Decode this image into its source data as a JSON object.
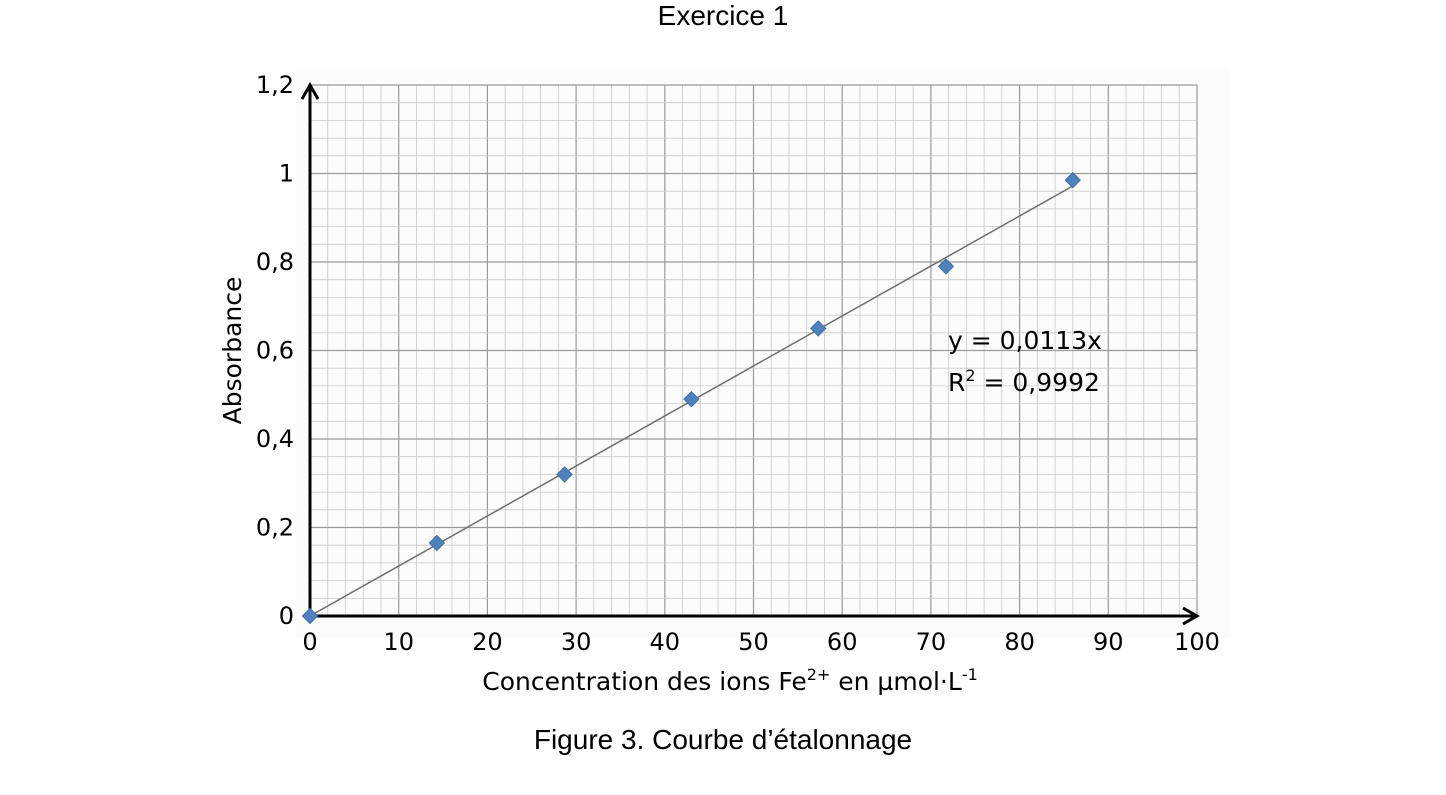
{
  "header": {
    "title": "Exercice 1"
  },
  "caption": "Figure 3. Courbe d’étalonnage",
  "chart_data": {
    "type": "scatter",
    "xlabel": {
      "main": "Concentration des ions Fe",
      "sup": "2+",
      "mid": " en µmol·L",
      "sup2": "-1"
    },
    "ylabel": "Absorbance",
    "xlim": [
      0,
      100
    ],
    "ylim": [
      0,
      1.2
    ],
    "xticks": [
      0,
      10,
      20,
      30,
      40,
      50,
      60,
      70,
      80,
      90,
      100
    ],
    "yticks": [
      0,
      0.2,
      0.4,
      0.6,
      0.8,
      1,
      1.2
    ],
    "x_tick_labels": [
      "0",
      "10",
      "20",
      "30",
      "40",
      "50",
      "60",
      "70",
      "80",
      "90",
      "100"
    ],
    "y_tick_labels": [
      "0",
      "0,2",
      "0,4",
      "0,6",
      "0,8",
      "1",
      "1,2"
    ],
    "grid": "major and minor",
    "marker_color": "#4F81BD",
    "series": [
      {
        "x": [
          0,
          14.3,
          28.7,
          43.0,
          57.3,
          71.7,
          86.0
        ],
        "y": [
          0,
          0.165,
          0.32,
          0.49,
          0.65,
          0.79,
          0.985
        ]
      }
    ],
    "trendline": {
      "slope": 0.0113,
      "x_range": [
        0,
        86.0
      ],
      "equation": "y = 0,0113x",
      "r2_label": "R",
      "r2_sup": "2",
      "r2_value": " = 0,9992"
    }
  }
}
